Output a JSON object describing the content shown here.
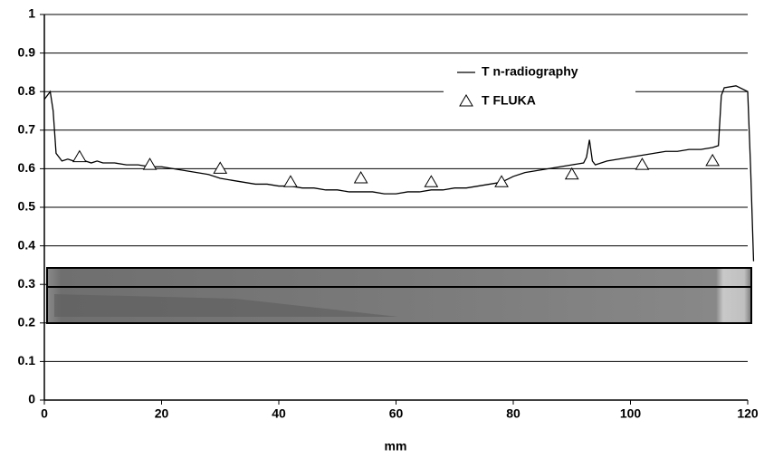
{
  "chart_data": {
    "type": "line",
    "x_label": "mm",
    "xlim": [
      0,
      120
    ],
    "xticks": [
      0,
      20,
      40,
      60,
      80,
      100,
      120
    ],
    "ylim": [
      0,
      1
    ],
    "yticks": [
      0,
      0.1,
      0.2,
      0.3,
      0.4,
      0.5,
      0.6,
      0.7,
      0.8,
      0.9,
      1
    ],
    "grid": true,
    "legend": "top",
    "series": [
      {
        "name": "T n-radiography",
        "color": "#000000",
        "style": "line",
        "x": [
          0,
          0.5,
          1,
          1.5,
          2,
          3,
          4,
          5,
          6,
          7,
          8,
          9,
          10,
          12,
          14,
          16,
          18,
          20,
          22,
          24,
          26,
          28,
          30,
          32,
          34,
          36,
          38,
          40,
          42,
          44,
          46,
          48,
          50,
          52,
          54,
          56,
          58,
          60,
          62,
          64,
          66,
          68,
          70,
          72,
          74,
          76,
          78,
          80,
          82,
          84,
          86,
          88,
          90,
          92,
          92.5,
          93,
          93.5,
          94,
          96,
          98,
          100,
          102,
          104,
          106,
          108,
          110,
          112,
          114,
          115,
          115.5,
          116,
          118,
          120,
          120.5,
          121
        ],
        "values": [
          0.78,
          0.79,
          0.8,
          0.75,
          0.64,
          0.62,
          0.625,
          0.62,
          0.625,
          0.62,
          0.615,
          0.62,
          0.615,
          0.615,
          0.61,
          0.61,
          0.605,
          0.605,
          0.6,
          0.595,
          0.59,
          0.585,
          0.575,
          0.57,
          0.565,
          0.56,
          0.56,
          0.555,
          0.555,
          0.55,
          0.55,
          0.545,
          0.545,
          0.54,
          0.54,
          0.54,
          0.535,
          0.535,
          0.54,
          0.54,
          0.545,
          0.545,
          0.55,
          0.55,
          0.555,
          0.56,
          0.565,
          0.58,
          0.59,
          0.595,
          0.6,
          0.605,
          0.61,
          0.615,
          0.63,
          0.675,
          0.62,
          0.61,
          0.62,
          0.625,
          0.63,
          0.635,
          0.64,
          0.645,
          0.645,
          0.65,
          0.65,
          0.655,
          0.66,
          0.79,
          0.81,
          0.815,
          0.8,
          0.6,
          0.36
        ]
      },
      {
        "name": "T FLUKA",
        "color": "#000000",
        "style": "markers",
        "x": [
          6,
          18,
          30,
          42,
          54,
          66,
          78,
          90,
          102,
          114
        ],
        "values": [
          0.63,
          0.61,
          0.6,
          0.565,
          0.575,
          0.565,
          0.565,
          0.585,
          0.61,
          0.62
        ]
      }
    ]
  }
}
